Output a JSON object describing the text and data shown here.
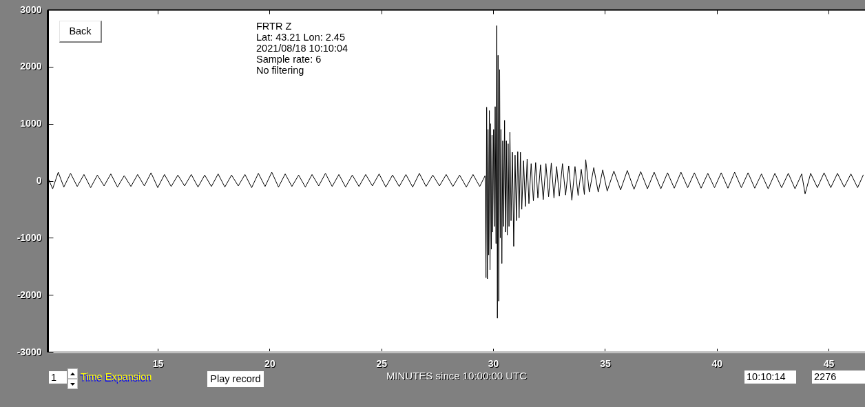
{
  "chart_data": {
    "type": "line",
    "xlabel": "MINUTES since 10:00:00 UTC",
    "annotations": [
      "FRTR Z",
      "Lat: 43.21 Lon: 2.45",
      "2021/08/18 10:10:04",
      "Sample rate: 6",
      "No filtering",
      "Back",
      "1",
      "Time Expansion",
      "Play record",
      "10:10:14",
      "2276"
    ],
    "x": [
      10.1,
      10.3,
      10.55,
      10.8,
      11.1,
      11.4,
      11.7,
      12.0,
      12.3,
      12.6,
      12.9,
      13.2,
      13.5,
      13.8,
      14.1,
      14.4,
      14.7,
      15.0,
      15.3,
      15.6,
      15.9,
      16.2,
      16.5,
      16.8,
      17.1,
      17.4,
      17.7,
      18.0,
      18.3,
      18.6,
      18.9,
      19.2,
      19.5,
      19.8,
      20.1,
      20.4,
      20.7,
      21.0,
      21.3,
      21.6,
      21.9,
      22.2,
      22.5,
      22.8,
      23.1,
      23.4,
      23.7,
      24.0,
      24.3,
      24.6,
      24.9,
      25.2,
      25.5,
      25.8,
      26.1,
      26.4,
      26.7,
      27.0,
      27.3,
      27.6,
      27.9,
      28.2,
      28.5,
      28.8,
      29.1,
      29.4,
      29.64,
      29.68,
      29.71,
      29.74,
      29.77,
      29.8,
      29.83,
      29.86,
      29.89,
      29.92,
      29.95,
      29.98,
      30.02,
      30.05,
      30.09,
      30.13,
      30.16,
      30.19,
      30.22,
      30.25,
      30.29,
      30.32,
      30.35,
      30.39,
      30.43,
      30.47,
      30.51,
      30.55,
      30.59,
      30.63,
      30.67,
      30.71,
      30.75,
      30.8,
      30.86,
      30.92,
      30.98,
      31.04,
      31.1,
      31.16,
      31.22,
      31.28,
      31.36,
      31.44,
      31.52,
      31.6,
      31.7,
      31.8,
      31.9,
      32.0,
      32.12,
      32.24,
      32.36,
      32.48,
      32.6,
      32.72,
      32.84,
      32.96,
      33.1,
      33.24,
      33.38,
      33.52,
      33.66,
      33.8,
      33.94,
      34.08,
      34.14,
      34.3,
      34.5,
      34.7,
      34.9,
      35.1,
      35.4,
      35.7,
      36.0,
      36.3,
      36.6,
      36.9,
      37.2,
      37.5,
      37.8,
      38.1,
      38.4,
      38.7,
      39.0,
      39.3,
      39.6,
      39.9,
      40.2,
      40.5,
      40.8,
      41.1,
      41.4,
      41.7,
      42.0,
      42.3,
      42.6,
      42.9,
      43.2,
      43.5,
      43.8,
      43.95,
      44.2,
      44.5,
      44.8,
      45.1,
      45.4,
      45.7,
      46.0,
      46.3,
      46.55
    ],
    "values": [
      40,
      -140,
      150,
      -110,
      130,
      -100,
      110,
      -120,
      100,
      -90,
      120,
      -110,
      90,
      -100,
      110,
      -90,
      140,
      -120,
      110,
      -100,
      100,
      -90,
      110,
      -110,
      100,
      -100,
      120,
      -110,
      100,
      -90,
      110,
      -120,
      130,
      -100,
      150,
      -110,
      120,
      -100,
      100,
      -110,
      110,
      -90,
      130,
      -100,
      110,
      -110,
      100,
      -100,
      110,
      -90,
      120,
      -110,
      100,
      -100,
      110,
      -110,
      130,
      -100,
      100,
      -90,
      110,
      -100,
      100,
      -110,
      110,
      -100,
      90,
      -1700,
      1290,
      -1720,
      900,
      -1300,
      1230,
      -1560,
      1000,
      -1200,
      800,
      -900,
      900,
      -800,
      1300,
      -1100,
      2720,
      -2410,
      2200,
      -2110,
      1950,
      -1000,
      900,
      -1450,
      700,
      -800,
      1060,
      -900,
      700,
      -950,
      650,
      -800,
      850,
      -700,
      500,
      -1150,
      450,
      -700,
      510,
      -650,
      500,
      -500,
      350,
      -450,
      380,
      -400,
      300,
      -350,
      320,
      -300,
      280,
      -330,
      300,
      -280,
      310,
      -300,
      250,
      -270,
      300,
      -250,
      260,
      -340,
      250,
      -260,
      200,
      -240,
      370,
      -200,
      230,
      -200,
      190,
      -180,
      170,
      -160,
      180,
      -150,
      160,
      -140,
      150,
      -140,
      140,
      -130,
      150,
      -120,
      140,
      -130,
      130,
      -120,
      140,
      -130,
      150,
      -120,
      140,
      -130,
      120,
      -140,
      130,
      -120,
      130,
      -140,
      120,
      -230,
      130,
      -120,
      140,
      -120,
      130,
      -110,
      120,
      -120,
      100
    ],
    "color": "#000000",
    "line_style": "solid",
    "xlim": [
      10.07,
      46.63
    ],
    "ylim": [
      -3000,
      3000
    ],
    "xticks": [
      15,
      20,
      25,
      30,
      35,
      40,
      45
    ],
    "yticks": [
      -3000,
      -2000,
      -1000,
      0,
      1000,
      2000,
      3000
    ]
  }
}
